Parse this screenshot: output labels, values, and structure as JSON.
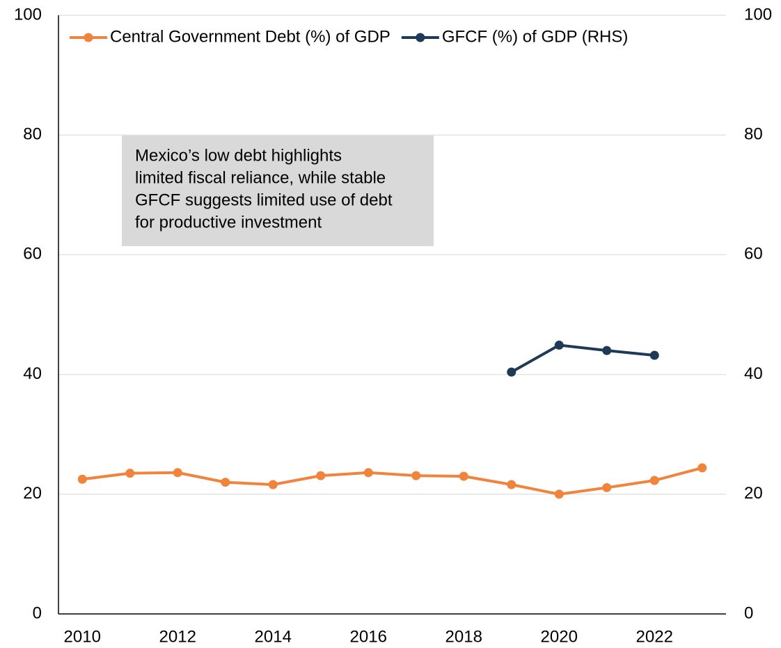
{
  "chart_data": {
    "type": "line",
    "x": [
      2010,
      2011,
      2012,
      2013,
      2014,
      2015,
      2016,
      2017,
      2018,
      2019,
      2020,
      2021,
      2022,
      2023
    ],
    "series": [
      {
        "name": "Central Government Debt (%) of GDP",
        "color": "#f0843c",
        "values": [
          22.5,
          23.5,
          23.6,
          22.0,
          21.6,
          23.1,
          23.6,
          23.1,
          23.0,
          21.6,
          20.0,
          21.1,
          22.3,
          24.4
        ]
      },
      {
        "name": "GFCF (%) of GDP (RHS)",
        "color": "#1f3a56",
        "axis": "y2",
        "values": [
          null,
          null,
          null,
          null,
          null,
          null,
          null,
          null,
          null,
          40.4,
          44.9,
          44.0,
          43.2,
          null
        ]
      }
    ],
    "xlim": [
      2009.5,
      2023.5
    ],
    "xticks": [
      2010,
      2012,
      2014,
      2016,
      2018,
      2020,
      2022
    ],
    "ylim": [
      0,
      100
    ],
    "yticks": [
      0,
      20,
      40,
      60,
      80,
      100
    ],
    "y2lim": [
      0,
      100
    ],
    "y2ticks": [
      0,
      20,
      40,
      60,
      80,
      100
    ],
    "grid": true,
    "legend": "top",
    "annotation": [
      "Mexico’s low debt highlights",
      "limited fiscal reliance, while stable",
      "GFCF suggests limited use of debt",
      "for productive investment"
    ]
  }
}
